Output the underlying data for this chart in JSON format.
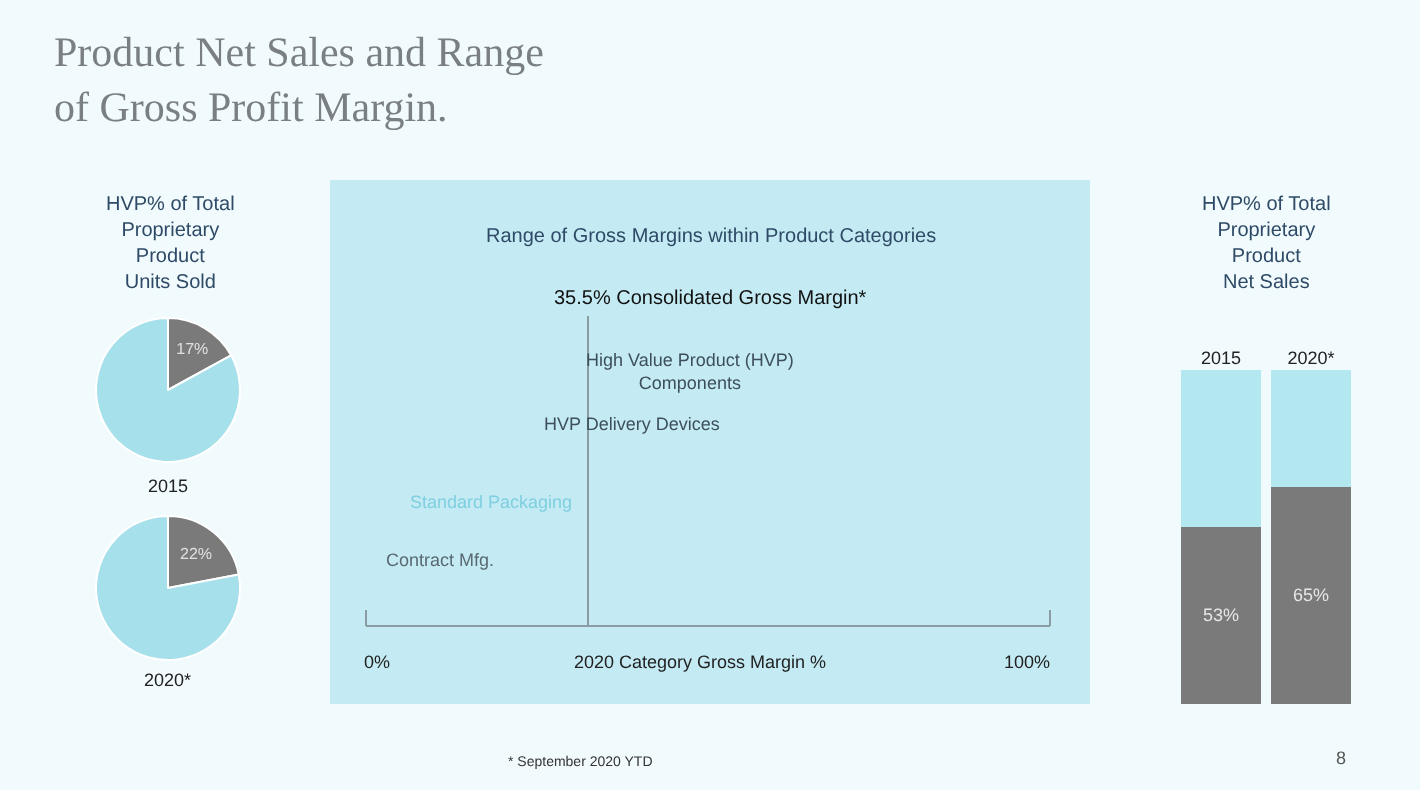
{
  "chart_data": [
    {
      "type": "other",
      "title": "Product Net Sales and Range\nof Gross Profit Margin.",
      "annotations": [
        "* September 2020 YTD",
        "8"
      ]
    },
    {
      "type": "pie",
      "title": "HVP% of Total\nProprietary\nProduct\nUnits Sold",
      "categories": [
        null,
        null
      ],
      "values": [
        17,
        83
      ],
      "colors": [
        "#7a7a7a",
        "#a6e0ea"
      ],
      "value_labels": [
        "17%",
        null
      ],
      "annotations": [
        "2015"
      ]
    },
    {
      "type": "pie",
      "categories": [
        null,
        null
      ],
      "values": [
        22,
        78
      ],
      "colors": [
        "#7a7a7a",
        "#a6e0ea"
      ],
      "value_labels": [
        "22%",
        null
      ],
      "annotations": [
        "2020*"
      ]
    },
    {
      "type": "other",
      "title": "Range of Gross Margins within Product Categories",
      "xlabel": "2020 Category Gross Margin %",
      "annotations": [
        "35.5% Consolidated Gross Margin*",
        "High Value Product (HVP)\nComponents",
        "HVP Delivery Devices",
        "Standard Packaging",
        "Contract Mfg.",
        "0%",
        "100%"
      ]
    },
    {
      "type": "bar",
      "stacked": true,
      "title": "HVP% of Total\nProprietary\nProduct\nNet Sales",
      "categories": [
        "2015",
        "2020*"
      ],
      "ylim": [
        0,
        100
      ],
      "tick_labels": "x",
      "series": [
        {
          "color": "#7a7a7a",
          "values": [
            53,
            65
          ],
          "value_labels": [
            "53%",
            "65%"
          ]
        },
        {
          "color": "#b3e8f0",
          "values": [
            47,
            35
          ]
        }
      ]
    }
  ]
}
